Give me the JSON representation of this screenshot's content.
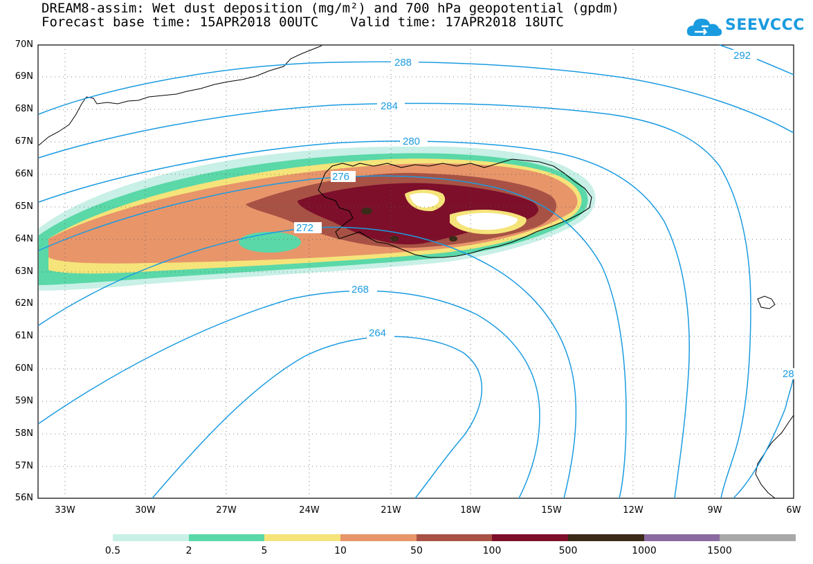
{
  "title_line1": "DREAM8-assim: Wet dust deposition (mg/m²) and 700 hPa geopotential (gpdm)",
  "title_line2": "Forecast base time: 15APR2018 00UTC    Valid time: 17APR2018 18UTC",
  "logo_text": "SEEVCCC",
  "lat_labels": [
    "70N",
    "69N",
    "68N",
    "67N",
    "66N",
    "65N",
    "64N",
    "63N",
    "62N",
    "61N",
    "60N",
    "59N",
    "58N",
    "57N",
    "56N"
  ],
  "lon_labels": [
    "33W",
    "30W",
    "27W",
    "24W",
    "21W",
    "18W",
    "15W",
    "12W",
    "9W",
    "6W"
  ],
  "contour_labels": [
    "292",
    "288",
    "284",
    "280",
    "276",
    "272",
    "268",
    "264",
    "28"
  ],
  "legend": {
    "labels": [
      "0.5",
      "2",
      "5",
      "10",
      "50",
      "100",
      "500",
      "1000",
      "1500"
    ],
    "colors": [
      "#c8f0e6",
      "#5ad8a8",
      "#f5e47a",
      "#e8956a",
      "#a85245",
      "#7d0f2a",
      "#3a2a18",
      "#8a6aa0",
      "#a8a8a8"
    ]
  }
}
